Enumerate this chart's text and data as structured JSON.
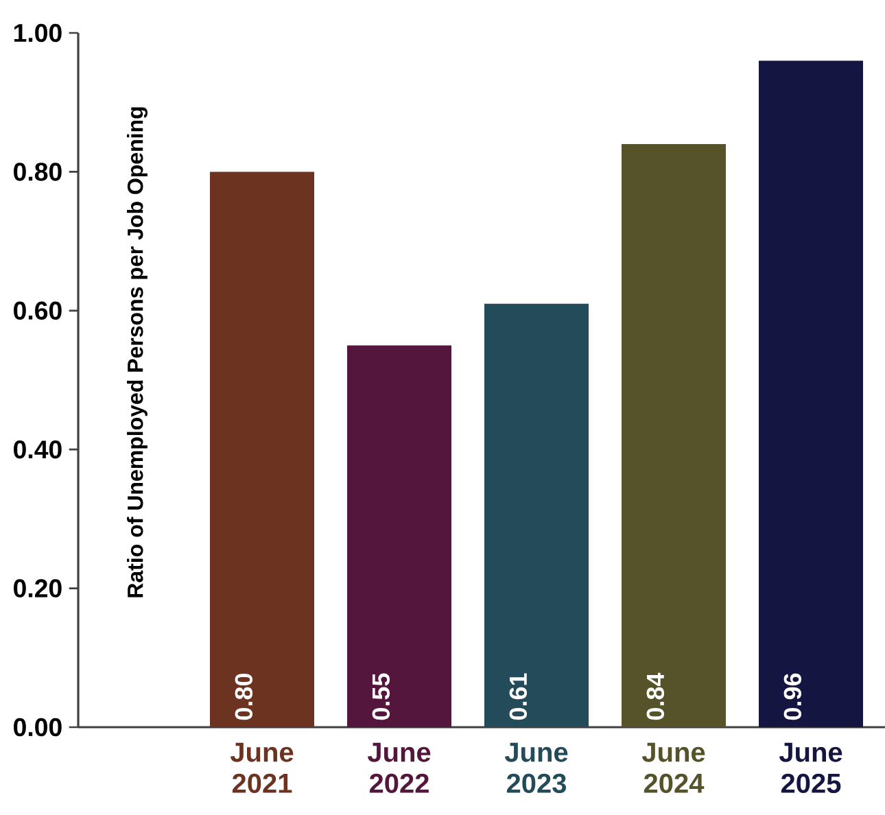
{
  "chart_data": {
    "type": "bar",
    "ylabel": "Ratio of Unemployed Persons per Job Opening",
    "categories": [
      "June 2021",
      "June 2022",
      "June 2023",
      "June 2024",
      "June 2025"
    ],
    "values": [
      0.8,
      0.55,
      0.61,
      0.84,
      0.96
    ],
    "value_labels": [
      "0.80",
      "0.55",
      "0.61",
      "0.84",
      "0.96"
    ],
    "colors": [
      "#6b3320",
      "#55163d",
      "#244b5a",
      "#56522a",
      "#141541"
    ],
    "ylim": [
      0,
      1.0
    ],
    "yticks": [
      {
        "value": 0,
        "label": "0.00"
      },
      {
        "value": 0.2,
        "label": "0.20"
      },
      {
        "value": 0.4,
        "label": "0.40"
      },
      {
        "value": 0.6,
        "label": "0.60"
      },
      {
        "value": 0.8,
        "label": "0.80"
      },
      {
        "value": 1.0,
        "label": "1.00"
      }
    ],
    "grid": false
  }
}
